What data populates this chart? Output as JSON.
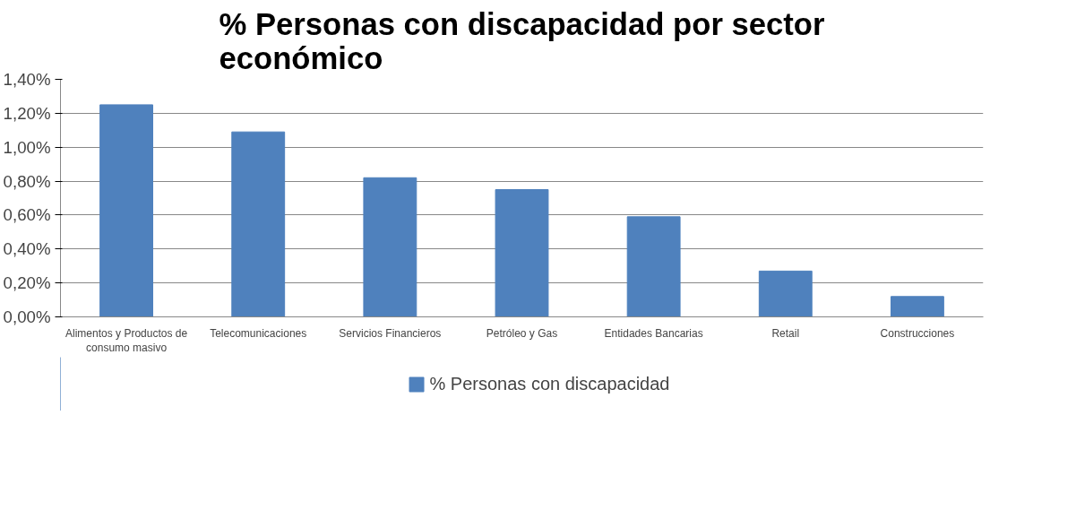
{
  "chart_data": {
    "type": "bar",
    "title": "% Personas con discapacidad por sector económico",
    "categories": [
      "Alimentos y Productos de consumo masivo",
      "Telecomunicaciones",
      "Servicios Financieros",
      "Petróleo y Gas",
      "Entidades Bancarias",
      "Retail",
      "Construcciones"
    ],
    "series": [
      {
        "name": "% Personas con discapacidad",
        "color": "#4f81bd",
        "values": [
          1.25,
          1.09,
          0.82,
          0.75,
          0.59,
          0.27,
          0.12
        ]
      }
    ],
    "ylim": [
      0,
      1.4
    ],
    "yticks": [
      {
        "value": 0,
        "label": "0,00%"
      },
      {
        "value": 0.2,
        "label": "0,20%"
      },
      {
        "value": 0.4,
        "label": "0,40%"
      },
      {
        "value": 0.6,
        "label": "0,60%"
      },
      {
        "value": 0.8,
        "label": "0,80%"
      },
      {
        "value": 1.0,
        "label": "1,00%"
      },
      {
        "value": 1.2,
        "label": "1,20%"
      },
      {
        "value": 1.4,
        "label": "1,40%"
      }
    ],
    "grid": "y",
    "legend": "bottom"
  }
}
